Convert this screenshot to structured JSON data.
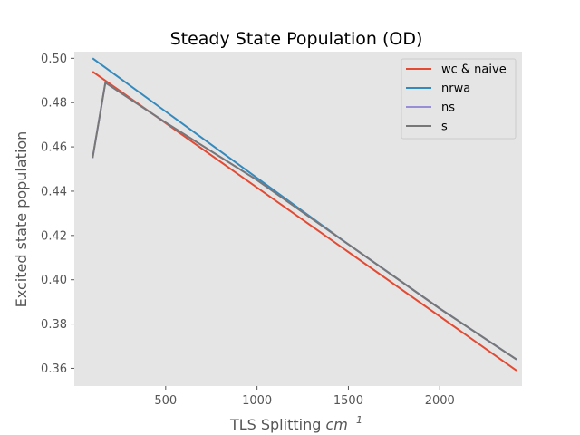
{
  "chart_data": {
    "type": "line",
    "title": "Steady State Population (OD)",
    "xlabel": "TLS Splitting",
    "xlabel_unit": "cm",
    "xlabel_unit_exp": "−1",
    "ylabel": "Excited state population",
    "xlim": [
      0,
      2450
    ],
    "ylim": [
      0.352,
      0.503
    ],
    "x_ticks": [
      500,
      1000,
      1500,
      2000
    ],
    "y_ticks": [
      0.36,
      0.38,
      0.4,
      0.42,
      0.44,
      0.46,
      0.48,
      0.5
    ],
    "y_tick_labels": [
      "0.36",
      "0.38",
      "0.40",
      "0.42",
      "0.44",
      "0.46",
      "0.48",
      "0.50"
    ],
    "grid": false,
    "background": "#e5e5e5",
    "legend_position": "top-right",
    "series": [
      {
        "name": "wc & naive",
        "color": "#e24a33",
        "x": [
          100,
          2420
        ],
        "y": [
          0.494,
          0.359
        ]
      },
      {
        "name": "nrwa",
        "color": "#348abd",
        "x": [
          100,
          500,
          1000,
          1500,
          2000,
          2420
        ],
        "y": [
          0.5,
          0.476,
          0.446,
          0.416,
          0.387,
          0.364
        ]
      },
      {
        "name": "ns",
        "color": "#988ed5",
        "x": [
          100,
          170,
          500,
          1000,
          1500,
          2000,
          2420
        ],
        "y": [
          0.455,
          0.489,
          0.471,
          0.445,
          0.416,
          0.387,
          0.364
        ]
      },
      {
        "name": "s",
        "color": "#777777",
        "x": [
          100,
          170,
          500,
          1000,
          1500,
          2000,
          2420
        ],
        "y": [
          0.455,
          0.489,
          0.471,
          0.445,
          0.416,
          0.387,
          0.364
        ]
      }
    ]
  }
}
